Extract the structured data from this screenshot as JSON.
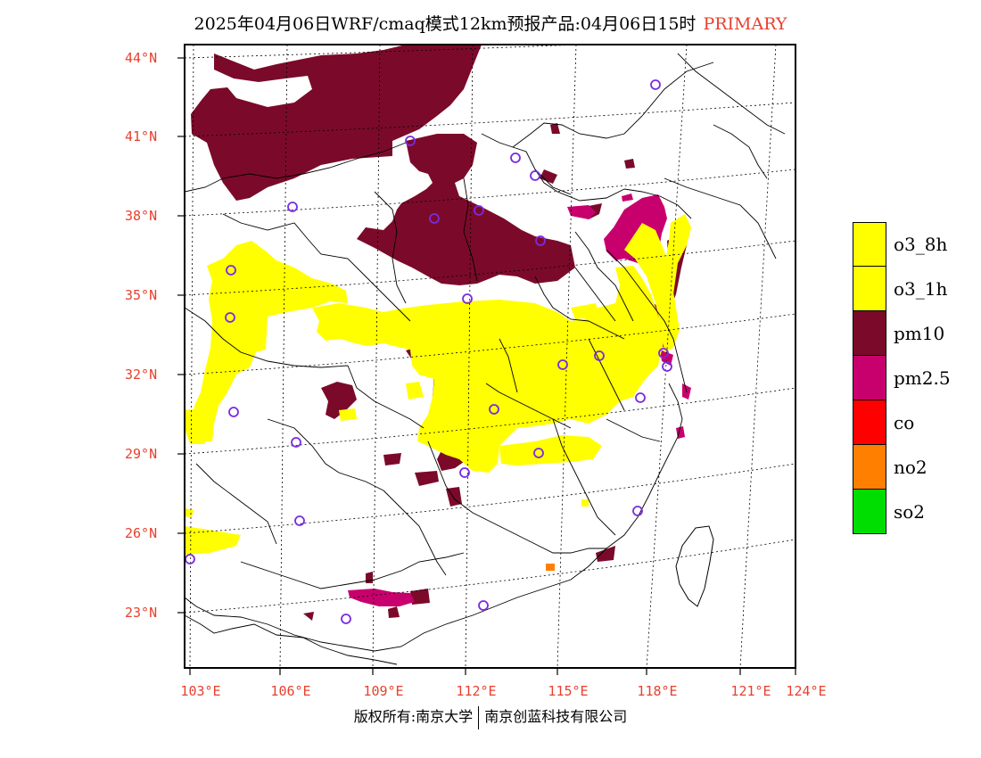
{
  "header": {
    "title": "2025年04月06日WRF/cmaq模式12km预报产品:04月06日15时",
    "tag": "PRIMARY"
  },
  "axes": {
    "lat_labels": [
      "44°N",
      "41°N",
      "38°N",
      "35°N",
      "32°N",
      "29°N",
      "26°N",
      "23°N"
    ],
    "lon_labels": [
      "103°E",
      "106°E",
      "109°E",
      "112°E",
      "115°E",
      "118°E",
      "121°E",
      "124°E"
    ],
    "label_color": "#e8402e"
  },
  "legend": {
    "items": [
      {
        "label": "o3_8h",
        "color": "#ffff00"
      },
      {
        "label": "o3_1h",
        "color": "#ffff00"
      },
      {
        "label": "pm10",
        "color": "#7b0a2a"
      },
      {
        "label": "pm2.5",
        "color": "#c8006e"
      },
      {
        "label": "co",
        "color": "#ff0000"
      },
      {
        "label": "no2",
        "color": "#ff8000"
      },
      {
        "label": "so2",
        "color": "#00dd00"
      }
    ]
  },
  "footer": {
    "left": "版权所有:南京大学",
    "right": "南京创蓝科技有限公司"
  },
  "colors": {
    "pm10": "#7b0a2a",
    "pm25": "#c8006e",
    "o3": "#ffff00",
    "no2": "#ff8000",
    "city_marker": "#7a2be0"
  }
}
